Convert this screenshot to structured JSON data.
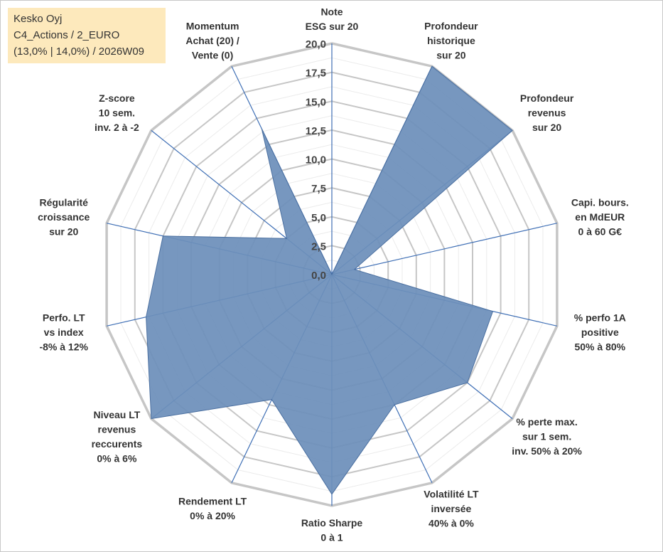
{
  "info": {
    "name": "Kesko Oyj",
    "line2": "C4_Actions / 2_EURO",
    "line3": "(13,0% | 14,0%) / 2026W09"
  },
  "chart_data": {
    "type": "radar",
    "title": "",
    "rmin": 0,
    "rmax": 20,
    "ticks": [
      "0,0",
      "2,5",
      "5,0",
      "7,5",
      "10,0",
      "12,5",
      "15,0",
      "17,5",
      "20,0"
    ],
    "tick_values": [
      0,
      2.5,
      5,
      7.5,
      10,
      12.5,
      15,
      17.5,
      20
    ],
    "axes": [
      {
        "label": [
          "Note",
          "ESG sur 20"
        ],
        "value": 0
      },
      {
        "label": [
          "Profondeur",
          "historique",
          "sur 20"
        ],
        "value": 20
      },
      {
        "label": [
          "Profondeur",
          "revenus",
          "sur 20"
        ],
        "value": 20
      },
      {
        "label": [
          "Capi. bours.",
          "en MdEUR",
          "0 à 60 G€"
        ],
        "value": 2
      },
      {
        "label": [
          "% perfo 1A",
          "positive",
          "50% à 80%"
        ],
        "value": 14.3
      },
      {
        "label": [
          "% perte max.",
          "sur 1 sem.",
          "inv. 50% à 20%"
        ],
        "value": 15
      },
      {
        "label": [
          "Volatilité LT",
          "inversée",
          "40% à 0%"
        ],
        "value": 12.5
      },
      {
        "label": [
          "Ratio Sharpe",
          "0 à 1"
        ],
        "value": 19
      },
      {
        "label": [
          "Rendement LT",
          "0% à 20%"
        ],
        "value": 12
      },
      {
        "label": [
          "Niveau LT",
          "revenus",
          "reccurents",
          "0% à 6%"
        ],
        "value": 20
      },
      {
        "label": [
          "Perfo. LT",
          "vs index",
          "-8% à 12%"
        ],
        "value": 16.5
      },
      {
        "label": [
          "Régularité",
          "croissance",
          "sur 20"
        ],
        "value": 15
      },
      {
        "label": [
          "Z-score",
          "10 sem.",
          "inv. 2 à -2"
        ],
        "value": 5
      },
      {
        "label": [
          "Momentum",
          "Achat (20) /",
          "Vente (0)"
        ],
        "value": 14
      }
    ],
    "series": [
      {
        "name": "Kesko Oyj",
        "color": "#6d8fba"
      }
    ],
    "grid": true
  }
}
